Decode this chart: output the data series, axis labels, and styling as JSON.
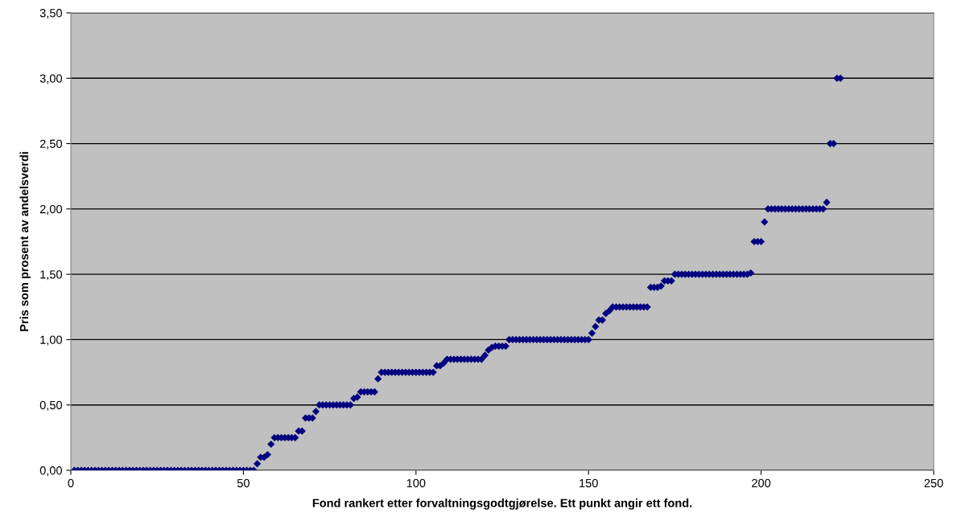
{
  "chart_data": {
    "type": "scatter",
    "xlabel": "Fond rankert etter forvaltningsgodtgjørelse. Ett punkt angir ett fond.",
    "ylabel": "Pris som prosent av andelsverdi",
    "xlim": [
      0,
      250
    ],
    "xticks": [
      0,
      50,
      100,
      150,
      200,
      250
    ],
    "ylim": [
      0,
      3.5
    ],
    "yticks": [
      {
        "value": 0,
        "label": "0,00"
      },
      {
        "value": 0.5,
        "label": "0,50"
      },
      {
        "value": 1,
        "label": "1,00"
      },
      {
        "value": 1.5,
        "label": "1,50"
      },
      {
        "value": 2,
        "label": "2,00"
      },
      {
        "value": 2.5,
        "label": "2,50"
      },
      {
        "value": 3,
        "label": "3,00"
      },
      {
        "value": 3.5,
        "label": "3,50"
      }
    ],
    "grid": "y",
    "legend": false,
    "marker": "diamond",
    "series": [
      {
        "color": "#000080",
        "x": [
          1,
          2,
          3,
          4,
          5,
          6,
          7,
          8,
          9,
          10,
          11,
          12,
          13,
          14,
          15,
          16,
          17,
          18,
          19,
          20,
          21,
          22,
          23,
          24,
          25,
          26,
          27,
          28,
          29,
          30,
          31,
          32,
          33,
          34,
          35,
          36,
          37,
          38,
          39,
          40,
          41,
          42,
          43,
          44,
          45,
          46,
          47,
          48,
          49,
          50,
          51,
          52,
          53,
          54,
          55,
          56,
          57,
          58,
          59,
          60,
          61,
          62,
          63,
          64,
          65,
          66,
          67,
          68,
          69,
          70,
          71,
          72,
          73,
          74,
          75,
          76,
          77,
          78,
          79,
          80,
          81,
          82,
          83,
          84,
          85,
          86,
          87,
          88,
          89,
          90,
          91,
          92,
          93,
          94,
          95,
          96,
          97,
          98,
          99,
          100,
          101,
          102,
          103,
          104,
          105,
          106,
          107,
          108,
          109,
          110,
          111,
          112,
          113,
          114,
          115,
          116,
          117,
          118,
          119,
          120,
          121,
          122,
          123,
          124,
          125,
          126,
          127,
          128,
          129,
          130,
          131,
          132,
          133,
          134,
          135,
          136,
          137,
          138,
          139,
          140,
          141,
          142,
          143,
          144,
          145,
          146,
          147,
          148,
          149,
          150,
          151,
          152,
          153,
          154,
          155,
          156,
          157,
          158,
          159,
          160,
          161,
          162,
          163,
          164,
          165,
          166,
          167,
          168,
          169,
          170,
          171,
          172,
          173,
          174,
          175,
          176,
          177,
          178,
          179,
          180,
          181,
          182,
          183,
          184,
          185,
          186,
          187,
          188,
          189,
          190,
          191,
          192,
          193,
          194,
          195,
          196,
          197,
          198,
          199,
          200,
          201,
          202,
          203,
          204,
          205,
          206,
          207,
          208,
          209,
          210,
          211,
          212,
          213,
          214,
          215,
          216,
          217,
          218,
          219,
          220,
          221,
          222,
          223
        ],
        "values": [
          0,
          0,
          0,
          0,
          0,
          0,
          0,
          0,
          0,
          0,
          0,
          0,
          0,
          0,
          0,
          0,
          0,
          0,
          0,
          0,
          0,
          0,
          0,
          0,
          0,
          0,
          0,
          0,
          0,
          0,
          0,
          0,
          0,
          0,
          0,
          0,
          0,
          0,
          0,
          0,
          0,
          0,
          0,
          0,
          0,
          0,
          0,
          0,
          0,
          0,
          0,
          0,
          0,
          0.05,
          0.1,
          0.1,
          0.12,
          0.2,
          0.25,
          0.25,
          0.25,
          0.25,
          0.25,
          0.25,
          0.25,
          0.3,
          0.3,
          0.4,
          0.4,
          0.4,
          0.45,
          0.5,
          0.5,
          0.5,
          0.5,
          0.5,
          0.5,
          0.5,
          0.5,
          0.5,
          0.5,
          0.55,
          0.56,
          0.6,
          0.6,
          0.6,
          0.6,
          0.6,
          0.7,
          0.75,
          0.75,
          0.75,
          0.75,
          0.75,
          0.75,
          0.75,
          0.75,
          0.75,
          0.75,
          0.75,
          0.75,
          0.75,
          0.75,
          0.75,
          0.75,
          0.8,
          0.8,
          0.82,
          0.85,
          0.85,
          0.85,
          0.85,
          0.85,
          0.85,
          0.85,
          0.85,
          0.85,
          0.85,
          0.85,
          0.88,
          0.92,
          0.94,
          0.95,
          0.95,
          0.95,
          0.95,
          1.0,
          1.0,
          1.0,
          1.0,
          1.0,
          1.0,
          1.0,
          1.0,
          1.0,
          1.0,
          1.0,
          1.0,
          1.0,
          1.0,
          1.0,
          1.0,
          1.0,
          1.0,
          1.0,
          1.0,
          1.0,
          1.0,
          1.0,
          1.0,
          1.05,
          1.1,
          1.15,
          1.15,
          1.2,
          1.22,
          1.25,
          1.25,
          1.25,
          1.25,
          1.25,
          1.25,
          1.25,
          1.25,
          1.25,
          1.25,
          1.25,
          1.4,
          1.4,
          1.4,
          1.41,
          1.45,
          1.45,
          1.45,
          1.5,
          1.5,
          1.5,
          1.5,
          1.5,
          1.5,
          1.5,
          1.5,
          1.5,
          1.5,
          1.5,
          1.5,
          1.5,
          1.5,
          1.5,
          1.5,
          1.5,
          1.5,
          1.5,
          1.5,
          1.5,
          1.5,
          1.51,
          1.75,
          1.75,
          1.75,
          1.9,
          2.0,
          2.0,
          2.0,
          2.0,
          2.0,
          2.0,
          2.0,
          2.0,
          2.0,
          2.0,
          2.0,
          2.0,
          2.0,
          2.0,
          2.0,
          2.0,
          2.0,
          2.05,
          2.5,
          2.5,
          3.0,
          3.0
        ]
      }
    ]
  }
}
